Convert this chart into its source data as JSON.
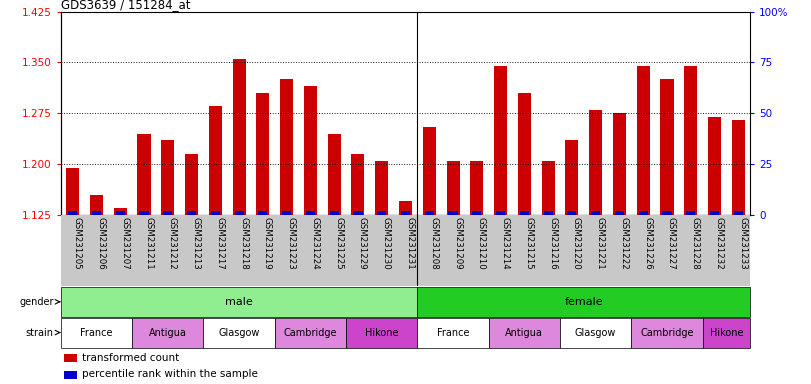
{
  "title": "GDS3639 / 151284_at",
  "samples": [
    "GSM231205",
    "GSM231206",
    "GSM231207",
    "GSM231211",
    "GSM231212",
    "GSM231213",
    "GSM231217",
    "GSM231218",
    "GSM231219",
    "GSM231223",
    "GSM231224",
    "GSM231225",
    "GSM231229",
    "GSM231230",
    "GSM231231",
    "GSM231208",
    "GSM231209",
    "GSM231210",
    "GSM231214",
    "GSM231215",
    "GSM231216",
    "GSM231220",
    "GSM231221",
    "GSM231222",
    "GSM231226",
    "GSM231227",
    "GSM231228",
    "GSM231232",
    "GSM231233"
  ],
  "red_values": [
    1.195,
    1.155,
    1.135,
    1.245,
    1.235,
    1.215,
    1.285,
    1.355,
    1.305,
    1.325,
    1.315,
    1.245,
    1.215,
    1.205,
    1.145,
    1.255,
    1.205,
    1.205,
    1.345,
    1.305,
    1.205,
    1.235,
    1.28,
    1.275,
    1.345,
    1.325,
    1.345,
    1.27,
    1.265
  ],
  "ylim_left": [
    1.125,
    1.425
  ],
  "ylim_right": [
    0,
    100
  ],
  "yticks_left": [
    1.125,
    1.2,
    1.275,
    1.35,
    1.425
  ],
  "yticks_right": [
    0,
    25,
    50,
    75,
    100
  ],
  "ytick_labels_right": [
    "0",
    "25",
    "50",
    "75",
    "100%"
  ],
  "gender_color_male": "#90ee90",
  "gender_color_female": "#22cc22",
  "bar_color_red": "#cc0000",
  "bar_color_blue": "#0000cc",
  "xtick_bg": "#c8c8c8",
  "strain_colors": [
    "#ffffff",
    "#dd88dd",
    "#ffffff",
    "#dd88dd",
    "#cc44cc"
  ],
  "strain_labels": [
    "France",
    "Antigua",
    "Glasgow",
    "Cambridge",
    "Hikone"
  ],
  "male_strain_starts": [
    0,
    3,
    6,
    9,
    12
  ],
  "male_strain_widths": [
    3,
    3,
    3,
    3,
    3
  ],
  "female_strain_starts": [
    15,
    18,
    21,
    24,
    27
  ],
  "female_strain_widths": [
    3,
    3,
    3,
    3,
    2
  ],
  "legend_items": [
    {
      "color": "#cc0000",
      "label": "transformed count"
    },
    {
      "color": "#0000cc",
      "label": "percentile rank within the sample"
    }
  ]
}
